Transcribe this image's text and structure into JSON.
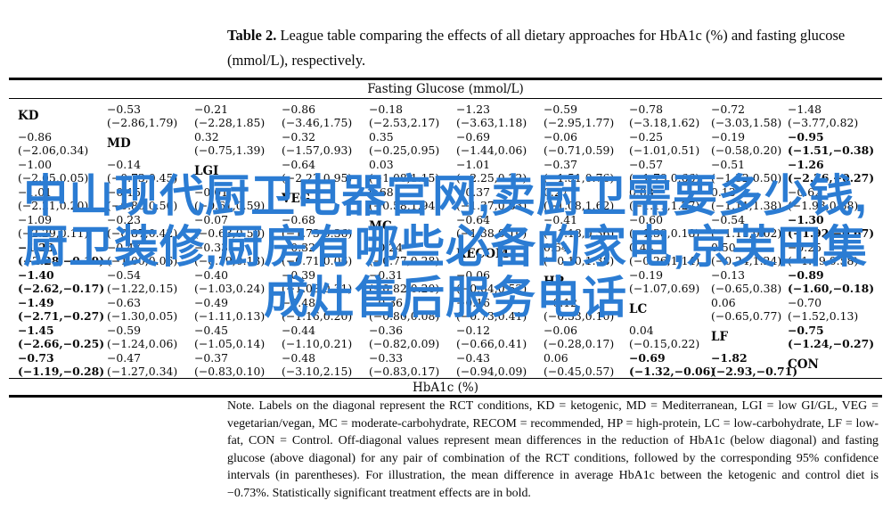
{
  "title": {
    "label": "Table 2.",
    "text": " League table comparing the effects of all dietary approaches for HbA1c (%) and fasting glucose (mmol/L), respectively."
  },
  "table": {
    "top_axis": "Fasting Glucose (mmol/L)",
    "bottom_axis": "HbA1c (%)",
    "diets": [
      "KD",
      "MD",
      "LGI",
      "VEG",
      "MC",
      "RECOM",
      "HP",
      "LC",
      "LF",
      "CON"
    ],
    "rows": [
      [
        {
          "d": "KD"
        },
        {
          "v": "−0.53",
          "ci": "(−2.86,1.79)"
        },
        {
          "v": "−0.21",
          "ci": "(−2.28,1.85)"
        },
        {
          "v": "−0.86",
          "ci": "(−3.46,1.75)"
        },
        {
          "v": "−0.18",
          "ci": "(−2.53,2.17)"
        },
        {
          "v": "−1.23",
          "ci": "(−3.63,1.18)"
        },
        {
          "v": "−0.59",
          "ci": "(−2.95,1.77)"
        },
        {
          "v": "−0.78",
          "ci": "(−3.18,1.62)"
        },
        {
          "v": "−0.72",
          "ci": "(−3.03,1.58)"
        },
        {
          "v": "−1.48",
          "ci": "(−3.77,0.82)"
        }
      ],
      [
        {
          "v": "−0.86",
          "ci": "(−2.06,0.34)"
        },
        {
          "d": "MD"
        },
        {
          "v": "0.32",
          "ci": "(−0.75,1.39)"
        },
        {
          "v": "−0.32",
          "ci": "(−1.57,0.93)"
        },
        {
          "v": "0.35",
          "ci": "(−0.25,0.95)"
        },
        {
          "v": "−0.69",
          "ci": "(−1.44,0.06)"
        },
        {
          "v": "−0.06",
          "ci": "(−0.71,0.59)"
        },
        {
          "v": "−0.25",
          "ci": "(−1.01,0.51)"
        },
        {
          "v": "−0.19",
          "ci": "(−0.58,0.20)"
        },
        {
          "v": "−0.95",
          "ci": "(−1.51,−0.38)",
          "b": 1
        }
      ],
      [
        {
          "v": "−1.00",
          "ci": "(−2.05,0.05)"
        },
        {
          "v": "−0.14",
          "ci": "(−0.73,0.45)"
        },
        {
          "d": "LGI"
        },
        {
          "v": "−0.64",
          "ci": "(−2.23,0.95)"
        },
        {
          "v": "0.03",
          "ci": "(−1.08,1.15)"
        },
        {
          "v": "−1.01",
          "ci": "(−2.25,0.22)"
        },
        {
          "v": "−0.37",
          "ci": "(−1.51,0.76)"
        },
        {
          "v": "−0.57",
          "ci": "(−1.79,0.66)"
        },
        {
          "v": "−0.51",
          "ci": "(−1.52,0.50)"
        },
        {
          "v": "−1.26",
          "ci": "(−2.26,−0.27)",
          "b": 1
        }
      ],
      [
        {
          "v": "−1.01",
          "ci": "(−2.21,0.20)"
        },
        {
          "v": "−0.15",
          "ci": "(−0.80,0.50)"
        },
        {
          "v": "−0.01",
          "ci": "(−0.61,0.59)"
        },
        {
          "d": "VEG"
        },
        {
          "v": "0.68",
          "ci": "(−0.58,1.94)"
        },
        {
          "v": "−0.37",
          "ci": "(−1.37,0.63)"
        },
        {
          "v": "0.27",
          "ci": "(−1.08,1.62)"
        },
        {
          "v": "0.08",
          "ci": "(−1.11,1.27)"
        },
        {
          "v": "0.13",
          "ci": "(−1.11,1.38)"
        },
        {
          "v": "−0.62",
          "ci": "(−1.93,0.68)"
        }
      ],
      [
        {
          "v": "−1.09",
          "ci": "(−2.29,0.11)"
        },
        {
          "v": "−0.23",
          "ci": "(−0.87,0.42)"
        },
        {
          "v": "−0.07",
          "ci": "(−0.63,0.50)"
        },
        {
          "v": "−0.68",
          "ci": "(−1.73,0.36)"
        },
        {
          "d": "MC"
        },
        {
          "v": "−0.64",
          "ci": "(−1.38,0.10)"
        },
        {
          "v": "−0.41",
          "ci": "(−1.18,0.36)"
        },
        {
          "v": "−0.60",
          "ci": "(−1.38,0.18)"
        },
        {
          "v": "−0.54",
          "ci": "(−1.11,0.02)"
        },
        {
          "v": "−1.30",
          "ci": "(−1.92,−0.67)",
          "b": 1
        }
      ],
      [
        {
          "v": "−1.23",
          "ci": "(−2.28,−0.19)",
          "b": 1
        },
        {
          "v": "−0.47",
          "ci": "(−1.00,0.06)"
        },
        {
          "v": "−0.33",
          "ci": "(−0.79,0.13)"
        },
        {
          "v": "−0.32",
          "ci": "(−0.71,0.06)"
        },
        {
          "v": "−0.24",
          "ci": "(−0.77,0.28)"
        },
        {
          "d": "RECOM"
        },
        {
          "v": "0.64",
          "ci": "(−0.10,1.38)"
        },
        {
          "v": "0.44",
          "ci": "(−0.26,1.14)"
        },
        {
          "v": "0.50",
          "ci": "(−0.24,1.24)"
        },
        {
          "v": "−0.25",
          "ci": "(−1.09,0.58)"
        }
      ],
      [
        {
          "v": "−1.40",
          "ci": "(−2.62,−0.17)",
          "b": 1
        },
        {
          "v": "−0.54",
          "ci": "(−1.22,0.15)"
        },
        {
          "v": "−0.40",
          "ci": "(−1.03,0.24)"
        },
        {
          "v": "−0.39",
          "ci": "(−1.08,0.31)"
        },
        {
          "v": "−0.31",
          "ci": "(−0.82,0.20)"
        },
        {
          "v": "−0.06",
          "ci": "(−0.64,0.52)"
        },
        {
          "d": "HP"
        },
        {
          "v": "−0.19",
          "ci": "(−1.07,0.69)"
        },
        {
          "v": "−0.13",
          "ci": "(−0.65,0.38)"
        },
        {
          "v": "−0.89",
          "ci": "(−1.60,−0.18)",
          "b": 1
        }
      ],
      [
        {
          "v": "−1.49",
          "ci": "(−2.71,−0.27)",
          "b": 1
        },
        {
          "v": "−0.63",
          "ci": "(−1.30,0.05)"
        },
        {
          "v": "−0.49",
          "ci": "(−1.11,0.13)"
        },
        {
          "v": "−0.48",
          "ci": "(−1.16,0.20)"
        },
        {
          "v": "−0.36",
          "ci": "(−0.80,0.08)"
        },
        {
          "v": "−0.16",
          "ci": "(−0.73,0.41)"
        },
        {
          "v": "−0.12",
          "ci": "(−0.33,0.10)"
        },
        {
          "d": "LC"
        },
        {
          "v": "0.06",
          "ci": "(−0.65,0.77)"
        },
        {
          "v": "−0.70",
          "ci": "(−1.52,0.13)"
        }
      ],
      [
        {
          "v": "−1.45",
          "ci": "(−2.66,−0.25)",
          "b": 1
        },
        {
          "v": "−0.59",
          "ci": "(−1.24,0.06)"
        },
        {
          "v": "−0.45",
          "ci": "(−1.05,0.14)"
        },
        {
          "v": "−0.44",
          "ci": "(−1.10,0.21)"
        },
        {
          "v": "−0.36",
          "ci": "(−0.82,0.09)"
        },
        {
          "v": "−0.12",
          "ci": "(−0.66,0.41)"
        },
        {
          "v": "−0.06",
          "ci": "(−0.28,0.17)"
        },
        {
          "v": "0.04",
          "ci": "(−0.15,0.22)"
        },
        {
          "d": "LF"
        },
        {
          "v": "−0.75",
          "ci": "(−1.24,−0.27)",
          "b": 1
        }
      ],
      [
        {
          "v": "−0.73",
          "ci": "(−1.19,−0.28)",
          "b": 1
        },
        {
          "v": "−0.47",
          "ci": "(−1.27,0.34)"
        },
        {
          "v": "−0.37",
          "ci": "(−0.83,0.10)"
        },
        {
          "v": "−0.48",
          "ci": "(−3.10,2.15)"
        },
        {
          "v": "−0.33",
          "ci": "(−0.83,0.17)"
        },
        {
          "v": "−0.43",
          "ci": "(−0.94,0.09)"
        },
        {
          "v": "0.06",
          "ci": "(−0.45,0.57)"
        },
        {
          "v": "−0.69",
          "ci": "(−1.32,−0.06)",
          "b": 1
        },
        {
          "v": "−1.82",
          "ci": "(−2.93,−0.71)",
          "b": 1
        },
        {
          "d": "CON"
        }
      ]
    ]
  },
  "note": {
    "text": "Note. Labels on the diagonal represent the RCT conditions, KD = ketogenic, MD = Mediterranean, LGI = low GI/GL, VEG = vegetarian/vegan, MC = moderate-carbohydrate, RECOM = recommended, HP = high-protein, LC = low-carbohydrate, LF = low-fat, CON = Control. Off-diagonal values represent mean differences in the reduction of HbA1c (below diagonal) and fasting glucose (above diagonal) for any pair of combination of the RCT conditions, followed by the corresponding 95% confidence intervals (in parentheses). For illustration, the mean difference in average HbA1c between the ketogenic and control diet is −0.73%. Statistically significant treatment effects are in bold."
  },
  "watermark": {
    "color": "#2b7cd3",
    "lines": [
      "中山现代厨卫电器官网,卖厨卫需要多少钱,",
      "厨卫装修,厨房有哪些必备的家电,京芙田集",
      "成灶售后服务电话"
    ]
  }
}
